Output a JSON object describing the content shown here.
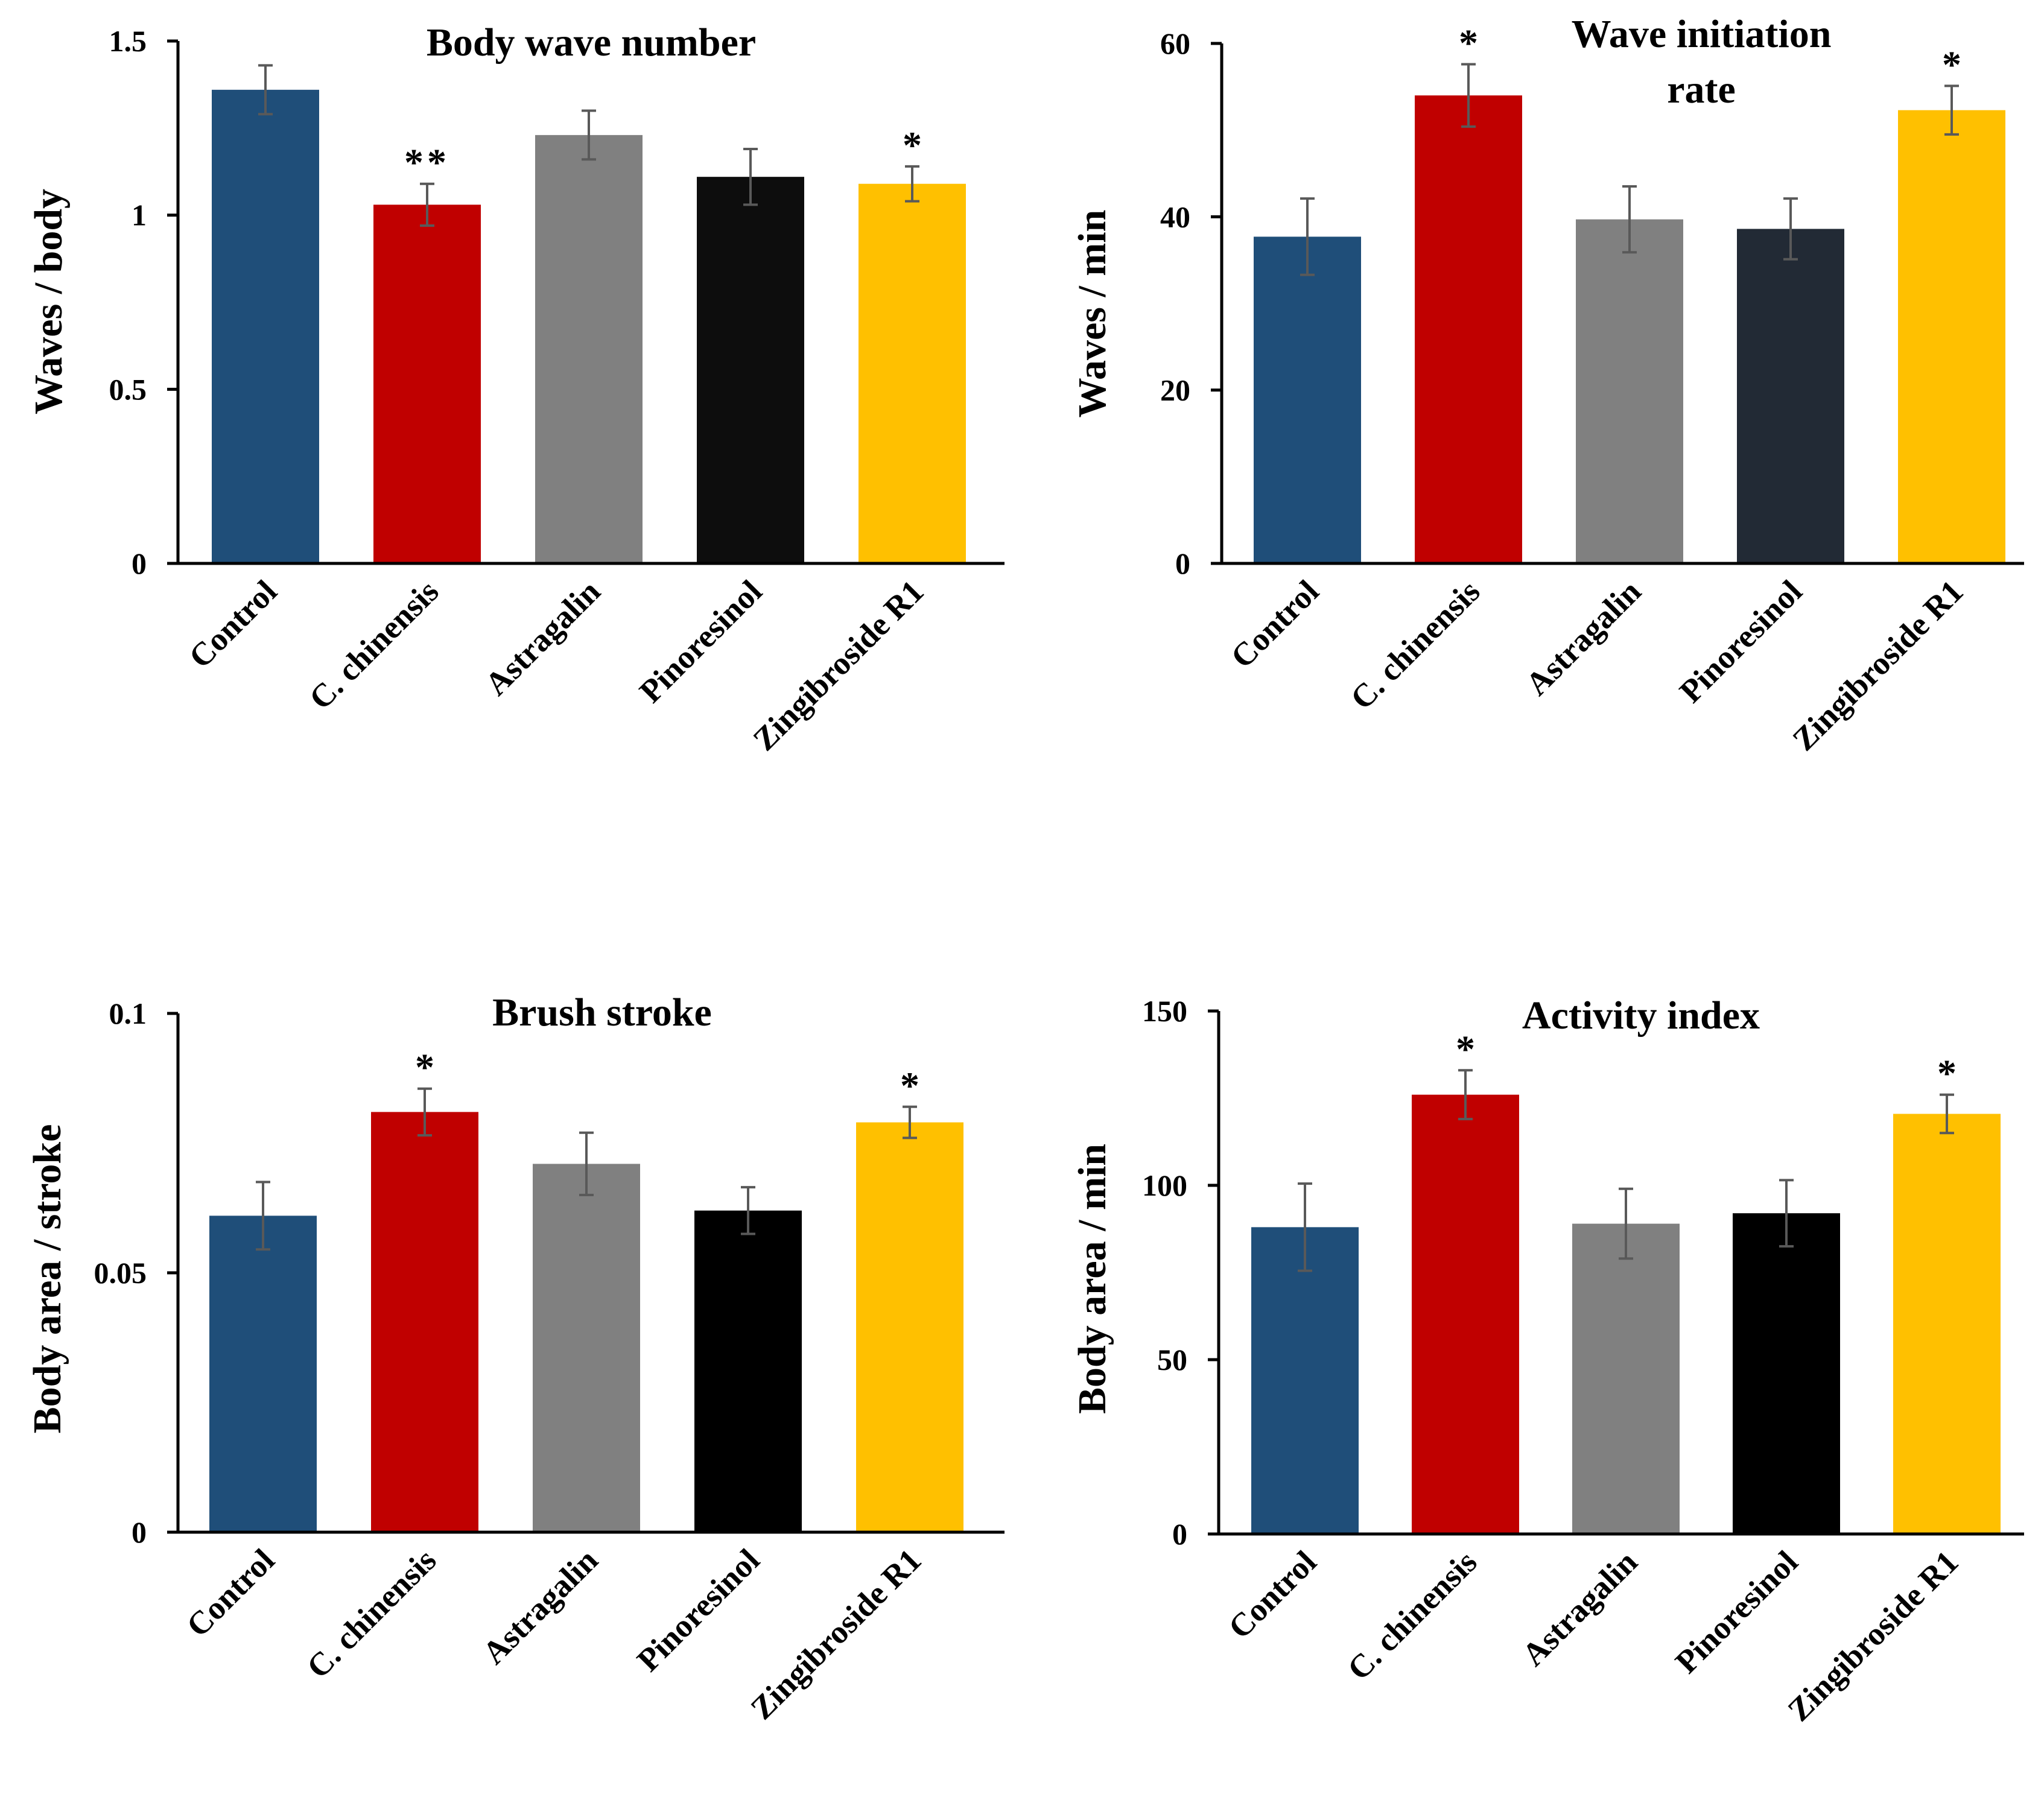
{
  "figure": {
    "background": "#ffffff"
  },
  "chart_data": [
    {
      "type": "bar",
      "title": "Body wave number",
      "ylabel": "Waves / body",
      "xlabel": "",
      "ylim": [
        0,
        1.5
      ],
      "yticks": [
        0,
        0.5,
        1,
        1.5
      ],
      "ytick_labels": [
        "0",
        "0.5",
        "1",
        "1.5"
      ],
      "categories": [
        "Control",
        "C. chinensis",
        "Astragalin",
        "Pinoresinol",
        "Zingibroside R1"
      ],
      "values": [
        1.36,
        1.03,
        1.23,
        1.11,
        1.09
      ],
      "errors": [
        0.07,
        0.06,
        0.07,
        0.08,
        0.05
      ],
      "significance": [
        "",
        "**",
        "",
        "",
        "*"
      ],
      "colors": [
        "#1f4e79",
        "#c00000",
        "#808080",
        "#0d0d0d",
        "#ffc000"
      ]
    },
    {
      "type": "bar",
      "title": "Wave initiation rate",
      "title_lines": [
        "Wave initiation",
        "rate"
      ],
      "ylabel": "Waves / min",
      "xlabel": "",
      "ylim": [
        0,
        60
      ],
      "yticks": [
        0,
        20,
        40,
        60
      ],
      "ytick_labels": [
        "0",
        "20",
        "40",
        "60"
      ],
      "categories": [
        "Control",
        "C. chinensis",
        "Astragalin",
        "Pinoresinol",
        "Zingibroside R1"
      ],
      "values": [
        37.7,
        54,
        39.7,
        38.6,
        52.3
      ],
      "errors": [
        4.4,
        3.6,
        3.8,
        3.5,
        2.8
      ],
      "significance": [
        "",
        "*",
        "",
        "",
        "*"
      ],
      "colors": [
        "#1f4e79",
        "#c00000",
        "#808080",
        "#222a35",
        "#ffc000"
      ]
    },
    {
      "type": "bar",
      "title": "Brush stroke",
      "ylabel": "Body area / stroke",
      "xlabel": "",
      "ylim": [
        0,
        0.1
      ],
      "yticks": [
        0,
        0.05,
        0.1
      ],
      "ytick_labels": [
        "0",
        "0.05",
        "0.1"
      ],
      "categories": [
        "Control",
        "C. chinensis",
        "Astragalin",
        "Pinoresinol",
        "Zingibroside R1"
      ],
      "values": [
        0.061,
        0.081,
        0.071,
        0.062,
        0.079
      ],
      "errors": [
        0.0065,
        0.0045,
        0.006,
        0.0045,
        0.003
      ],
      "significance": [
        "",
        "*",
        "",
        "",
        "*"
      ],
      "colors": [
        "#1f4e79",
        "#c00000",
        "#808080",
        "#000000",
        "#ffc000"
      ]
    },
    {
      "type": "bar",
      "title": "Activity index",
      "ylabel": "Body area / min",
      "xlabel": "",
      "ylim": [
        0,
        150
      ],
      "yticks": [
        0,
        50,
        100,
        150
      ],
      "ytick_labels": [
        "0",
        "50",
        "100",
        "150"
      ],
      "categories": [
        "Control",
        "C. chinensis",
        "Astragalin",
        "Pinoresinol",
        "Zingibroside R1"
      ],
      "values": [
        88,
        126,
        89,
        92,
        120.5
      ],
      "errors": [
        12.5,
        7,
        10,
        9.5,
        5.5
      ],
      "significance": [
        "",
        "*",
        "",
        "",
        "*"
      ],
      "colors": [
        "#1f4e79",
        "#c00000",
        "#808080",
        "#000000",
        "#ffc000"
      ]
    }
  ]
}
